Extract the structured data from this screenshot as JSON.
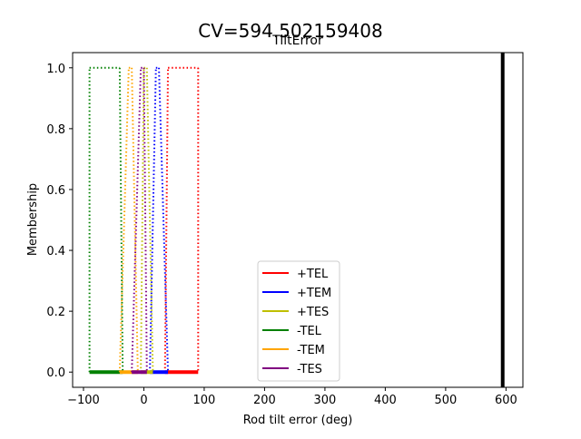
{
  "chart_data": {
    "type": "line",
    "suptitle": "CV=594.502159408",
    "title": "TiltError",
    "xlabel": "Rod tilt error (deg)",
    "ylabel": "Membership",
    "xlim": [
      -118,
      628
    ],
    "ylim": [
      -0.05,
      1.05
    ],
    "x_ticks": [
      -100,
      0,
      100,
      200,
      300,
      400,
      500,
      600
    ],
    "y_ticks": [
      0.0,
      0.2,
      0.4,
      0.6,
      0.8,
      1.0
    ],
    "x_tick_labels": [
      "−100",
      "0",
      "100",
      "200",
      "300",
      "400",
      "500",
      "600"
    ],
    "y_tick_labels": [
      "0.0",
      "0.2",
      "0.4",
      "0.6",
      "0.8",
      "1.0"
    ],
    "grid": false,
    "legend_position": "lower-center",
    "marker_line": {
      "x": 594.502159408,
      "color": "#000000"
    },
    "series": [
      {
        "name": "+TEL",
        "color": "#ff0000",
        "x": [
          35,
          40,
          90,
          90
        ],
        "y": [
          0,
          1,
          1,
          0
        ]
      },
      {
        "name": "+TEM",
        "color": "#0000ff",
        "x": [
          10,
          20,
          25,
          40
        ],
        "y": [
          0,
          1,
          1,
          0
        ]
      },
      {
        "name": "+TES",
        "color": "#bfbf00",
        "x": [
          -5,
          0,
          5,
          15
        ],
        "y": [
          0,
          1,
          1,
          0
        ]
      },
      {
        "name": "-TEL",
        "color": "#008000",
        "x": [
          -90,
          -90,
          -40,
          -35
        ],
        "y": [
          0,
          1,
          1,
          0
        ]
      },
      {
        "name": "-TEM",
        "color": "#ffa500",
        "x": [
          -40,
          -25,
          -20,
          -10
        ],
        "y": [
          0,
          1,
          1,
          0
        ]
      },
      {
        "name": "-TES",
        "color": "#800080",
        "x": [
          -20,
          -5,
          0,
          5
        ],
        "y": [
          0,
          1,
          1,
          0
        ]
      }
    ]
  }
}
